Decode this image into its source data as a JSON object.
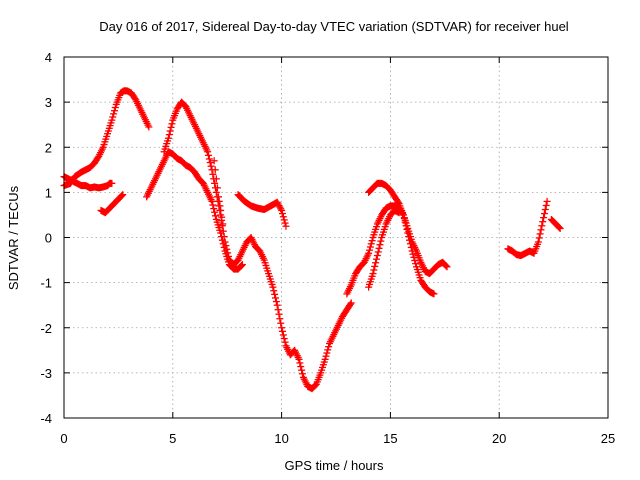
{
  "chart_data": {
    "type": "scatter",
    "title": "Day 016 of 2017, Sidereal Day-to-day VTEC variation (SDTVAR) for receiver huel",
    "xlabel": "GPS time / hours",
    "ylabel": "SDTVAR / TECUs",
    "xlim": [
      0,
      25
    ],
    "ylim": [
      -4,
      4
    ],
    "x_ticks": [
      0,
      5,
      10,
      15,
      20,
      25
    ],
    "y_ticks": [
      -4,
      -3,
      -2,
      -1,
      0,
      1,
      2,
      3,
      4
    ],
    "x_tick_labels": [
      "0",
      "5",
      "10",
      "15",
      "20",
      "25"
    ],
    "y_tick_labels": [
      "-4",
      "-3",
      "-2",
      "-1",
      "0",
      "1",
      "2",
      "3",
      "4"
    ],
    "grid": true,
    "marker": "+",
    "series_color": "#ff0000",
    "series": [
      {
        "x": [
          0.0,
          0.2,
          0.4,
          0.6,
          0.8,
          1.0,
          1.2,
          1.4,
          1.6,
          1.8,
          2.0,
          2.1,
          2.2
        ],
        "y": [
          1.35,
          1.3,
          1.25,
          1.2,
          1.15,
          1.15,
          1.1,
          1.12,
          1.1,
          1.12,
          1.15,
          1.2,
          1.2
        ]
      },
      {
        "x": [
          0.0,
          0.3,
          0.5,
          0.8,
          1.0,
          1.2,
          1.4,
          1.6,
          1.8,
          2.0,
          2.2,
          2.4,
          2.6,
          2.75,
          2.9,
          3.1,
          3.3,
          3.5,
          3.7,
          3.9
        ],
        "y": [
          1.15,
          1.2,
          1.35,
          1.45,
          1.5,
          1.55,
          1.65,
          1.8,
          2.0,
          2.3,
          2.6,
          2.95,
          3.2,
          3.25,
          3.25,
          3.2,
          3.05,
          2.85,
          2.65,
          2.45
        ]
      },
      {
        "x": [
          1.7,
          1.9,
          2.1,
          2.3,
          2.5,
          2.7
        ],
        "y": [
          0.6,
          0.55,
          0.65,
          0.75,
          0.85,
          0.95
        ]
      },
      {
        "x": [
          3.8,
          4.0,
          4.2,
          4.4,
          4.6,
          4.8,
          5.0,
          5.2,
          5.4,
          5.6,
          5.8,
          6.0,
          6.2,
          6.4,
          6.6,
          6.8,
          7.0,
          7.2,
          7.4,
          7.6,
          7.8,
          8.0,
          8.2
        ],
        "y": [
          0.9,
          1.1,
          1.3,
          1.5,
          1.7,
          1.9,
          1.85,
          1.75,
          1.7,
          1.6,
          1.55,
          1.45,
          1.3,
          1.2,
          1.0,
          0.8,
          0.4,
          0.1,
          -0.3,
          -0.6,
          -0.7,
          -0.7,
          -0.6
        ]
      },
      {
        "x": [
          4.6,
          4.8,
          5.0,
          5.2,
          5.4,
          5.6,
          5.8,
          6.0,
          6.2,
          6.4,
          6.6,
          6.8,
          7.0,
          7.2,
          7.4,
          7.6,
          7.8,
          8.0
        ],
        "y": [
          1.9,
          2.2,
          2.6,
          2.85,
          3.0,
          2.9,
          2.7,
          2.5,
          2.3,
          2.1,
          1.9,
          1.5,
          1.0,
          0.5,
          -0.1,
          -0.5,
          -0.6,
          -0.5
        ]
      },
      {
        "x": [
          6.9,
          7.0,
          7.1,
          7.2,
          7.3
        ],
        "y": [
          1.7,
          1.3,
          0.9,
          0.6,
          0.3
        ]
      },
      {
        "x": [
          8.0,
          8.2,
          8.4,
          8.6,
          8.8,
          9.0,
          9.2,
          9.4,
          9.6,
          9.8,
          10.0,
          10.2,
          10.4,
          10.6,
          10.8,
          11.0,
          11.2,
          11.4,
          11.6,
          11.8,
          12.0,
          12.2,
          12.4,
          12.6,
          12.8,
          13.0,
          13.2
        ],
        "y": [
          -0.5,
          -0.3,
          -0.1,
          0.0,
          -0.2,
          -0.3,
          -0.5,
          -0.8,
          -1.1,
          -1.5,
          -2.0,
          -2.4,
          -2.6,
          -2.5,
          -2.7,
          -3.1,
          -3.3,
          -3.35,
          -3.25,
          -3.0,
          -2.7,
          -2.35,
          -2.15,
          -1.95,
          -1.75,
          -1.6,
          -1.45
        ]
      },
      {
        "x": [
          8.0,
          8.3,
          8.6,
          8.9,
          9.2,
          9.5,
          9.8,
          10.0,
          10.2
        ],
        "y": [
          0.95,
          0.8,
          0.7,
          0.65,
          0.62,
          0.7,
          0.78,
          0.6,
          0.25
        ]
      },
      {
        "x": [
          13.0,
          13.2,
          13.4,
          13.6,
          13.8,
          14.0,
          14.2,
          14.4,
          14.6,
          14.8,
          15.0,
          15.2,
          15.4,
          15.6,
          15.8,
          16.0,
          16.2,
          16.4,
          16.6,
          16.8,
          17.0
        ],
        "y": [
          -1.25,
          -1.05,
          -0.8,
          -0.65,
          -0.55,
          -0.35,
          0.0,
          0.3,
          0.5,
          0.65,
          0.7,
          0.7,
          0.65,
          0.5,
          0.1,
          -0.3,
          -0.65,
          -0.95,
          -1.1,
          -1.2,
          -1.25
        ]
      },
      {
        "x": [
          14.0,
          14.2,
          14.4,
          14.6,
          14.8,
          15.0,
          15.2,
          15.4,
          15.6,
          15.8,
          16.0,
          16.2,
          16.4,
          16.6,
          16.8,
          17.0,
          17.2,
          17.4,
          17.6
        ],
        "y": [
          1.0,
          1.1,
          1.2,
          1.2,
          1.15,
          1.05,
          0.9,
          0.75,
          0.5,
          0.2,
          -0.1,
          -0.3,
          -0.55,
          -0.75,
          -0.8,
          -0.7,
          -0.6,
          -0.55,
          -0.65
        ]
      },
      {
        "x": [
          14.0,
          14.2,
          14.4,
          14.6,
          14.8,
          15.0,
          15.2,
          15.4
        ],
        "y": [
          -1.1,
          -0.8,
          -0.4,
          0.0,
          0.3,
          0.5,
          0.6,
          0.55
        ]
      },
      {
        "x": [
          20.4,
          20.6,
          20.8,
          21.0,
          21.2,
          21.4,
          21.6,
          21.8,
          22.0,
          22.2
        ],
        "y": [
          -0.25,
          -0.3,
          -0.38,
          -0.4,
          -0.35,
          -0.3,
          -0.35,
          -0.1,
          0.35,
          0.8
        ]
      },
      {
        "x": [
          22.4,
          22.6,
          22.8
        ],
        "y": [
          0.4,
          0.3,
          0.2
        ]
      }
    ]
  }
}
